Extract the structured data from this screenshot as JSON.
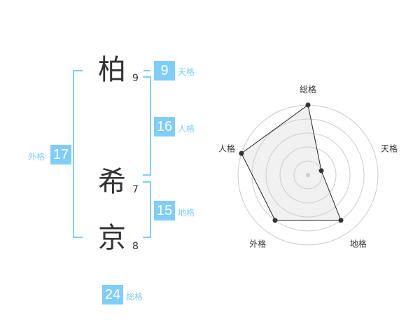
{
  "name": [
    {
      "char": "柏",
      "strokes": "9"
    },
    {
      "char": "希",
      "strokes": "7"
    },
    {
      "char": "京",
      "strokes": "8"
    }
  ],
  "scores": {
    "tenkaku": {
      "label": "天格",
      "value": "9"
    },
    "jinkaku": {
      "label": "人格",
      "value": "16"
    },
    "chikaku": {
      "label": "地格",
      "value": "15"
    },
    "gaikaku": {
      "label": "外格",
      "value": "17"
    },
    "soukaku": {
      "label": "総格",
      "value": "24"
    }
  },
  "colors": {
    "accent": "#7fcdf9",
    "polygon_fill": "#f1f1f1",
    "ring": "#cccccc",
    "point": "#333333"
  },
  "chart_data": {
    "type": "radar",
    "axes": [
      "総格",
      "天格",
      "地格",
      "外格",
      "人格"
    ],
    "values": [
      5,
      1,
      4,
      4,
      5
    ],
    "range": [
      0,
      5
    ],
    "rings": 5
  }
}
